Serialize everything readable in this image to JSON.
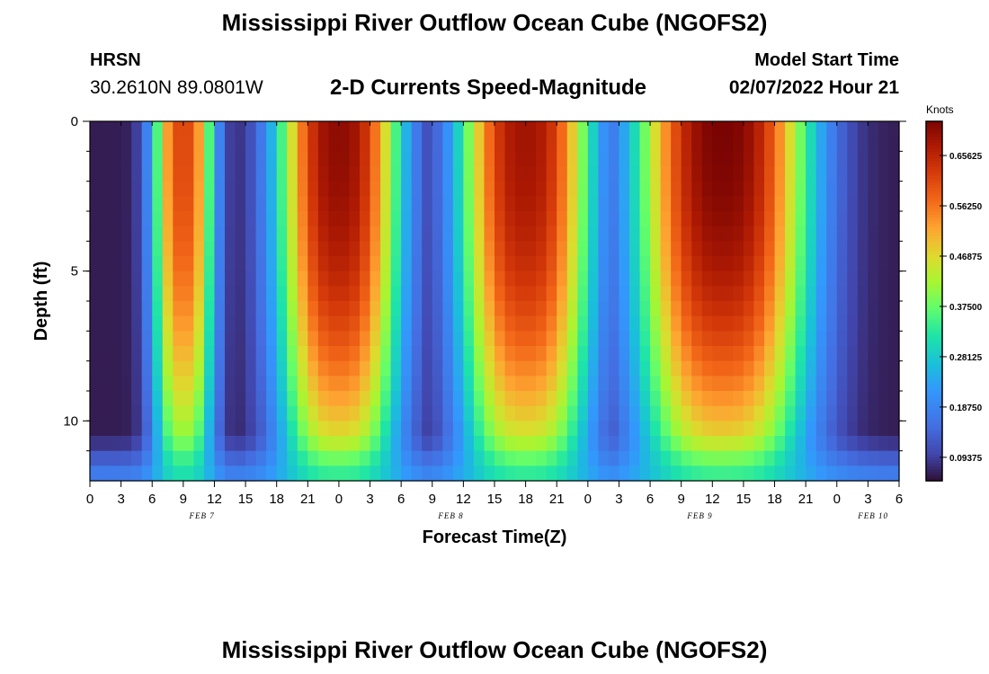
{
  "header": {
    "title": "Mississippi River Outflow Ocean Cube (NGOFS2)",
    "station_name": "HRSN",
    "station_coords": "30.2610N  89.0801W",
    "subtitle": "2-D Currents Speed-Magnitude",
    "model_start_label": "Model Start Time",
    "model_start_value": "02/07/2022 Hour 21"
  },
  "footer": {
    "title": "Mississippi River Outflow Ocean Cube (NGOFS2)"
  },
  "chart_data": {
    "type": "heatmap",
    "title": "2-D Currents Speed-Magnitude",
    "xlabel": "Forecast Time(Z)",
    "ylabel": "Depth (ft)",
    "xlim_hours": [
      0,
      78
    ],
    "ylim_ft": [
      0,
      12
    ],
    "x_tick_labels": [
      "0",
      "3",
      "6",
      "9",
      "12",
      "15",
      "18",
      "21",
      "0",
      "3",
      "6",
      "9",
      "12",
      "15",
      "18",
      "21",
      "0",
      "3",
      "6",
      "9",
      "12",
      "15",
      "18",
      "21",
      "0",
      "3",
      "6"
    ],
    "y_tick_values": [
      0,
      5,
      10
    ],
    "y_tick_labels": [
      "0",
      "5",
      "10"
    ],
    "date_labels": [
      {
        "text": "FEB 7",
        "hour": 10.8
      },
      {
        "text": "FEB 8",
        "hour": 34.8
      },
      {
        "text": "FEB 9",
        "hour": 58.8
      },
      {
        "text": "FEB 10",
        "hour": 75.5
      }
    ],
    "colorbar": {
      "units": "Knots",
      "min": 0.05,
      "max": 0.72,
      "tick_values": [
        0.65625,
        0.5625,
        0.46875,
        0.375,
        0.28125,
        0.1875,
        0.09375
      ],
      "tick_labels": [
        "0.65625",
        "0.56250",
        "0.46875",
        "0.37500",
        "0.28125",
        "0.18750",
        "0.09375"
      ]
    },
    "grid": {
      "hours_step": 1,
      "depth_step_ft": 0.5
    },
    "flood_events": [
      {
        "center_hour": 9.0,
        "half_width_hours": 3.0,
        "peak_knots": 0.6
      },
      {
        "center_hour": 24.0,
        "half_width_hours": 6.0,
        "peak_knots": 0.7
      },
      {
        "center_hour": 42.0,
        "half_width_hours": 6.5,
        "peak_knots": 0.68
      },
      {
        "center_hour": 61.0,
        "half_width_hours": 8.5,
        "peak_knots": 0.72
      }
    ],
    "slack_min_knots": 0.06,
    "bottom_layer_knots": 0.28
  }
}
